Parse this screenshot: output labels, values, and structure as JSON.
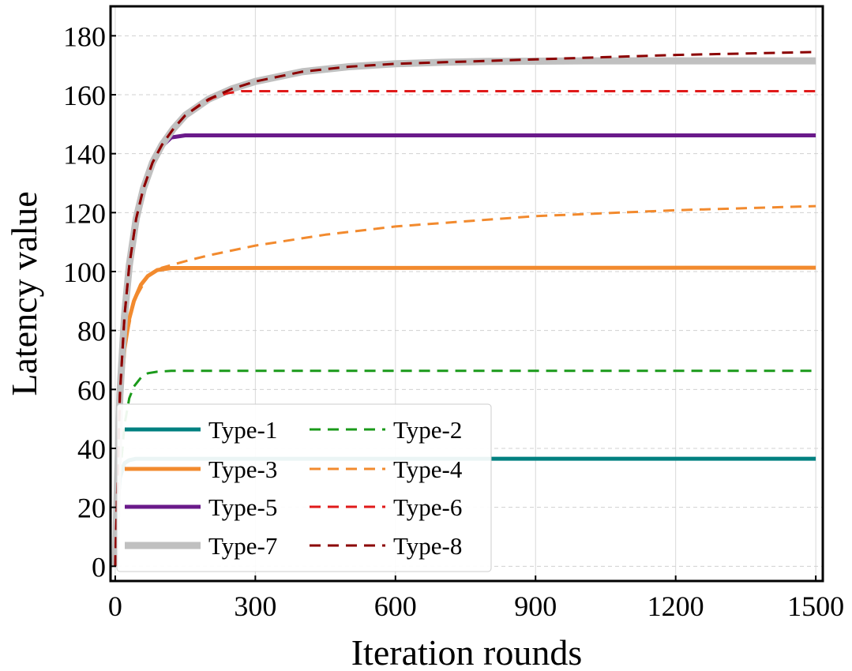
{
  "chart_data": {
    "type": "line",
    "title": "",
    "xlabel": "Iteration rounds",
    "ylabel": "Latency value",
    "xlim": [
      -10,
      1515
    ],
    "ylim": [
      -5,
      190
    ],
    "xticks": [
      0,
      300,
      600,
      900,
      1200,
      1500
    ],
    "yticks": [
      0,
      20,
      40,
      60,
      80,
      100,
      120,
      140,
      160,
      180
    ],
    "xtick_labels": [
      "0",
      "300",
      "600",
      "900",
      "1200",
      "1500"
    ],
    "ytick_labels": [
      "0",
      "20",
      "40",
      "60",
      "80",
      "100",
      "120",
      "140",
      "160",
      "180"
    ],
    "grid": true,
    "legend_position": "bottom-left",
    "series": [
      {
        "name": "Type-1",
        "style": "solid",
        "color": "#008080",
        "x": [
          0,
          5,
          10,
          20,
          30,
          45,
          60,
          1500
        ],
        "y": [
          0,
          20,
          30,
          35,
          36,
          36.5,
          36.5,
          36.5
        ]
      },
      {
        "name": "Type-2",
        "style": "dashed",
        "color": "#1a9a1a",
        "x": [
          0,
          10,
          20,
          30,
          40,
          55,
          70,
          90,
          120,
          1500
        ],
        "y": [
          0,
          30,
          48,
          57,
          61,
          64,
          65.5,
          66,
          66.3,
          66.3
        ]
      },
      {
        "name": "Type-3",
        "style": "solid",
        "color": "#f28a2e",
        "x": [
          0,
          5,
          10,
          20,
          30,
          40,
          55,
          70,
          90,
          120,
          1500
        ],
        "y": [
          0,
          35,
          55,
          74,
          84,
          90,
          95.5,
          98.5,
          100.5,
          101.2,
          101.3
        ]
      },
      {
        "name": "Type-4",
        "style": "dashed",
        "color": "#f28a2e",
        "x": [
          0,
          10,
          20,
          40,
          70,
          100,
          150,
          200,
          300,
          450,
          600,
          900,
          1200,
          1500
        ],
        "y": [
          0,
          55,
          74,
          90,
          98.5,
          101.3,
          103.5,
          105.5,
          108.8,
          112.5,
          115.3,
          118.8,
          120.8,
          122.2
        ]
      },
      {
        "name": "Type-5",
        "style": "solid",
        "color": "#6a1a8a",
        "x": [
          0,
          10,
          20,
          30,
          45,
          60,
          80,
          100,
          120,
          150,
          1500
        ],
        "y": [
          0,
          58,
          85,
          102,
          118,
          128,
          137,
          142.5,
          145.5,
          146.2,
          146.2
        ]
      },
      {
        "name": "Type-6",
        "style": "dashed",
        "color": "#e01a1a",
        "x": [
          0,
          10,
          20,
          30,
          45,
          60,
          80,
          100,
          125,
          150,
          180,
          210,
          240,
          270,
          1500
        ],
        "y": [
          0,
          58,
          85,
          102,
          118,
          128,
          137,
          143,
          148.5,
          153,
          156.5,
          159,
          160.5,
          161.2,
          161.2
        ]
      },
      {
        "name": "Type-7",
        "style": "solid",
        "color": "#c0c0c0",
        "x": [
          0,
          10,
          20,
          30,
          45,
          60,
          80,
          100,
          125,
          150,
          200,
          250,
          300,
          400,
          500,
          600,
          700,
          800,
          1000,
          1200,
          1500
        ],
        "y": [
          0,
          58,
          85,
          102,
          118,
          128,
          137,
          143,
          148.5,
          153,
          158.5,
          162,
          164.5,
          167.8,
          169.5,
          170.5,
          171,
          171.3,
          171.5,
          171.5,
          171.5
        ]
      },
      {
        "name": "Type-8",
        "style": "dashed",
        "color": "#8b0000",
        "x": [
          0,
          10,
          20,
          30,
          45,
          60,
          80,
          100,
          125,
          150,
          200,
          250,
          300,
          400,
          500,
          600,
          700,
          800,
          1000,
          1200,
          1500
        ],
        "y": [
          0,
          58,
          85,
          102,
          118,
          128,
          137,
          143,
          148.5,
          153,
          158.5,
          162,
          164.5,
          167.8,
          169.5,
          170.5,
          171,
          171.5,
          172.5,
          173.5,
          174.5
        ]
      }
    ],
    "legend": [
      [
        "Type-1",
        "Type-2"
      ],
      [
        "Type-3",
        "Type-4"
      ],
      [
        "Type-5",
        "Type-6"
      ],
      [
        "Type-7",
        "Type-8"
      ]
    ]
  }
}
